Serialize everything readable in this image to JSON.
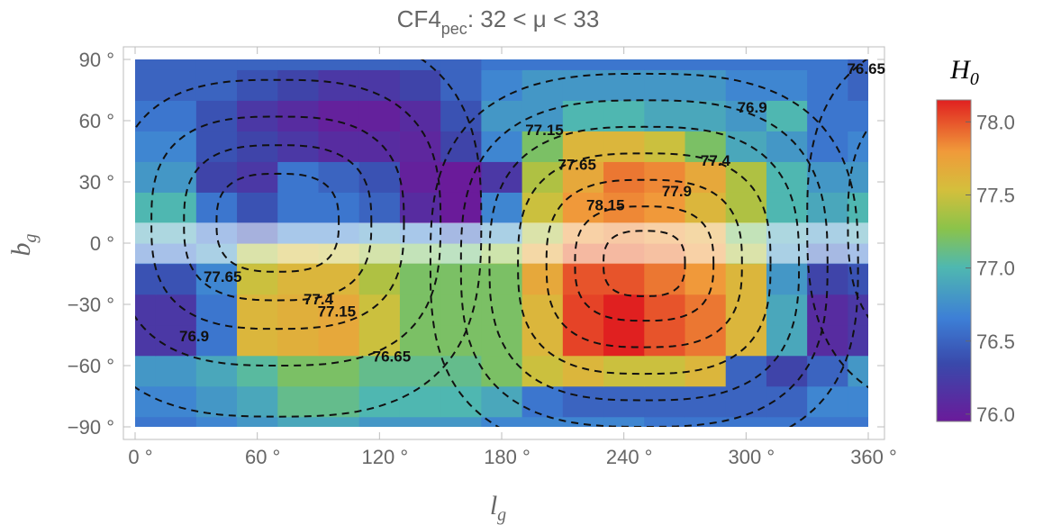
{
  "chart_data": {
    "type": "heatmap",
    "title": {
      "prefix": "CF4",
      "subscript": "pec",
      "suffix": ": 32  <  μ  <  33"
    },
    "xlabel": {
      "symbol": "l",
      "subscript": "g"
    },
    "ylabel": {
      "symbol": "b",
      "subscript": "g"
    },
    "xlim": [
      0,
      360
    ],
    "ylim": [
      -90,
      90
    ],
    "x_ticks": [
      0,
      60,
      120,
      180,
      240,
      300,
      360
    ],
    "x_tick_labels": [
      "0 °",
      "60 °",
      "120 °",
      "180 °",
      "240 °",
      "300 °",
      "360 °"
    ],
    "y_ticks": [
      90,
      60,
      30,
      0,
      -30,
      -60,
      -90
    ],
    "y_tick_labels": [
      "90 °",
      "60 °",
      "30 °",
      "0 °",
      "−30 °",
      "−60 °",
      "−90 °"
    ],
    "grid": {
      "lon_edges": [
        0,
        10,
        30,
        50,
        70,
        90,
        110,
        130,
        150,
        170,
        190,
        210,
        230,
        250,
        270,
        290,
        310,
        330,
        350,
        360
      ],
      "lat_edges": [
        -90,
        -85,
        -70,
        -55,
        -40,
        -25,
        -10,
        0,
        10,
        25,
        40,
        55,
        70,
        85,
        90
      ]
    },
    "cells": [
      [
        76.6,
        76.6,
        76.7,
        76.8,
        76.9,
        76.9,
        76.8,
        76.8,
        76.8,
        76.7,
        76.7,
        76.7,
        76.7,
        76.6,
        76.6,
        76.6,
        76.6,
        76.6,
        76.6
      ],
      [
        76.7,
        76.7,
        76.8,
        76.9,
        77.1,
        77.1,
        77.0,
        77.0,
        77.0,
        76.9,
        76.6,
        76.5,
        76.5,
        76.5,
        76.5,
        76.5,
        76.5,
        76.7,
        76.7
      ],
      [
        76.8,
        76.8,
        76.9,
        77.05,
        77.2,
        77.2,
        77.1,
        77.1,
        77.1,
        77.2,
        77.5,
        77.6,
        77.5,
        77.5,
        77.6,
        76.5,
        76.3,
        76.5,
        76.8
      ],
      [
        76.2,
        76.2,
        76.6,
        77.6,
        77.65,
        77.7,
        77.5,
        77.2,
        77.2,
        77.2,
        77.6,
        78.05,
        78.2,
        78.0,
        77.9,
        77.6,
        76.9,
        76.1,
        76.2
      ],
      [
        76.2,
        76.2,
        76.6,
        77.6,
        77.65,
        77.7,
        77.5,
        77.2,
        77.2,
        77.2,
        77.6,
        78.05,
        78.2,
        78.0,
        77.9,
        77.6,
        76.9,
        76.1,
        76.2
      ],
      [
        76.4,
        76.4,
        76.7,
        77.5,
        77.6,
        77.6,
        77.4,
        77.2,
        77.2,
        77.2,
        77.7,
        78.0,
        78.0,
        77.9,
        77.8,
        77.6,
        76.8,
        76.3,
        76.4
      ],
      [
        76.6,
        76.6,
        76.8,
        77.4,
        77.55,
        77.5,
        77.35,
        77.2,
        77.15,
        77.3,
        77.7,
        77.95,
        77.95,
        77.9,
        77.8,
        77.4,
        76.8,
        76.5,
        76.6
      ],
      [
        76.9,
        76.9,
        76.6,
        76.4,
        76.7,
        76.7,
        76.8,
        76.7,
        76.5,
        76.8,
        77.4,
        77.8,
        77.85,
        77.8,
        77.7,
        77.2,
        76.9,
        76.8,
        76.9
      ],
      [
        77.0,
        77.0,
        76.6,
        76.4,
        76.6,
        76.6,
        76.5,
        76.1,
        75.9,
        76.7,
        77.5,
        77.8,
        77.85,
        77.8,
        77.6,
        77.4,
        77.0,
        76.9,
        77.0
      ],
      [
        76.8,
        76.8,
        76.3,
        76.2,
        76.6,
        76.5,
        76.4,
        76.0,
        75.9,
        76.2,
        77.4,
        77.7,
        77.9,
        77.85,
        77.7,
        77.4,
        77.0,
        76.8,
        76.8
      ],
      [
        76.7,
        76.7,
        76.4,
        76.3,
        76.2,
        76.1,
        76.1,
        76.05,
        76.3,
        76.7,
        77.2,
        77.6,
        77.6,
        77.5,
        77.2,
        76.9,
        76.8,
        76.6,
        76.7
      ],
      [
        76.6,
        76.6,
        76.4,
        76.2,
        76.1,
        76.0,
        76.0,
        76.1,
        76.4,
        76.8,
        76.8,
        77.0,
        77.0,
        76.9,
        76.9,
        76.8,
        77.0,
        76.6,
        76.6
      ],
      [
        76.5,
        76.5,
        76.5,
        76.4,
        76.3,
        76.2,
        76.2,
        76.3,
        76.5,
        76.7,
        76.8,
        76.8,
        76.8,
        76.8,
        76.8,
        76.7,
        76.7,
        76.6,
        76.5
      ],
      [
        76.5,
        76.5,
        76.5,
        76.5,
        76.5,
        76.5,
        76.5,
        76.5,
        76.5,
        76.6,
        76.6,
        76.6,
        76.6,
        76.6,
        76.6,
        76.6,
        76.6,
        76.6,
        76.5
      ]
    ],
    "masked_band": [
      -10,
      10
    ],
    "colorbar": {
      "title": {
        "symbol": "H",
        "subscript": "0"
      },
      "range": [
        75.95,
        78.15
      ],
      "ticks": [
        76.0,
        76.5,
        77.0,
        77.5,
        78.0
      ],
      "tick_labels": [
        "76.0",
        "76.5",
        "77.0",
        "77.5",
        "78.0"
      ]
    },
    "contours": {
      "style": "dashed",
      "shown_levels": [
        76.65,
        76.9,
        77.15,
        77.4,
        77.65,
        77.9,
        78.15
      ],
      "hot_spot": {
        "center": [
          250,
          -10
        ],
        "levels": [
          76.65,
          76.9,
          77.15,
          77.4,
          77.65,
          77.9,
          78.15
        ],
        "radii": [
          [
            105,
            93
          ],
          [
            90,
            80
          ],
          [
            76,
            67
          ],
          [
            62,
            54
          ],
          [
            48,
            41
          ],
          [
            34,
            28
          ],
          [
            20,
            16
          ]
        ]
      },
      "cold_spot": {
        "center": [
          70,
          10
        ],
        "levels": [
          76.65,
          76.9,
          77.15,
          77.4,
          77.65
        ],
        "radii": [
          [
            100,
            95
          ],
          [
            80,
            70
          ],
          [
            62,
            52
          ],
          [
            46,
            38
          ],
          [
            30,
            24
          ]
        ]
      },
      "labels": [
        {
          "text": "76.65",
          "lon": 359,
          "lat": 83
        },
        {
          "text": "76.9",
          "lon": 303,
          "lat": 64
        },
        {
          "text": "77.4",
          "lon": 285,
          "lat": 38
        },
        {
          "text": "77.9",
          "lon": 266,
          "lat": 23
        },
        {
          "text": "77.15",
          "lon": 201,
          "lat": 53
        },
        {
          "text": "77.65",
          "lon": 217,
          "lat": 36
        },
        {
          "text": "78.15",
          "lon": 231,
          "lat": 16
        },
        {
          "text": "77.65",
          "lon": 43,
          "lat": -19
        },
        {
          "text": "77.4",
          "lon": 90,
          "lat": -30
        },
        {
          "text": "77.15",
          "lon": 99,
          "lat": -36
        },
        {
          "text": "76.9",
          "lon": 29,
          "lat": -48
        },
        {
          "text": "76.65",
          "lon": 126,
          "lat": -58
        }
      ]
    }
  }
}
